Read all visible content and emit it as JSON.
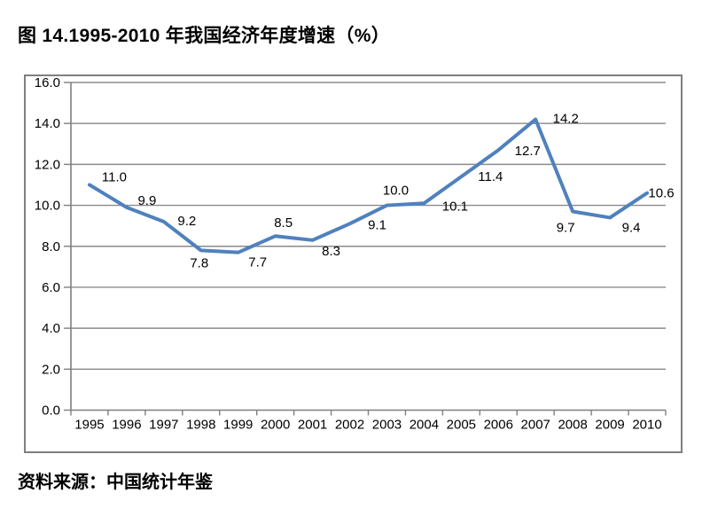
{
  "title": "图 14.1995-2010 年我国经济年度增速（%）",
  "source_note": "资料来源：中国统计年鉴",
  "chart_data": {
    "type": "line",
    "title": "图 14.1995-2010 年我国经济年度增速（%）",
    "categories": [
      "1995",
      "1996",
      "1997",
      "1998",
      "1999",
      "2000",
      "2001",
      "2002",
      "2003",
      "2004",
      "2005",
      "2006",
      "2007",
      "2008",
      "2009",
      "2010"
    ],
    "values": [
      11.0,
      9.9,
      9.2,
      7.8,
      7.7,
      8.5,
      8.3,
      9.1,
      10.0,
      10.1,
      11.4,
      12.7,
      14.2,
      9.7,
      9.4,
      10.6
    ],
    "xlabel": "",
    "ylabel": "",
    "ylim": [
      0,
      16
    ],
    "ytick_step": 2,
    "ytick_labels": [
      "0.0",
      "2.0",
      "4.0",
      "6.0",
      "8.0",
      "10.0",
      "12.0",
      "14.0",
      "16.0"
    ],
    "grid": true,
    "legend_position": "none",
    "data_labels_visible": true,
    "label_decimals": 1,
    "line_color": "#4F81BD",
    "grid_color": "#8A8A8A",
    "axis_color": "#7F7F7F",
    "border_color": "#7F7F7F",
    "text_color": "#000000"
  }
}
